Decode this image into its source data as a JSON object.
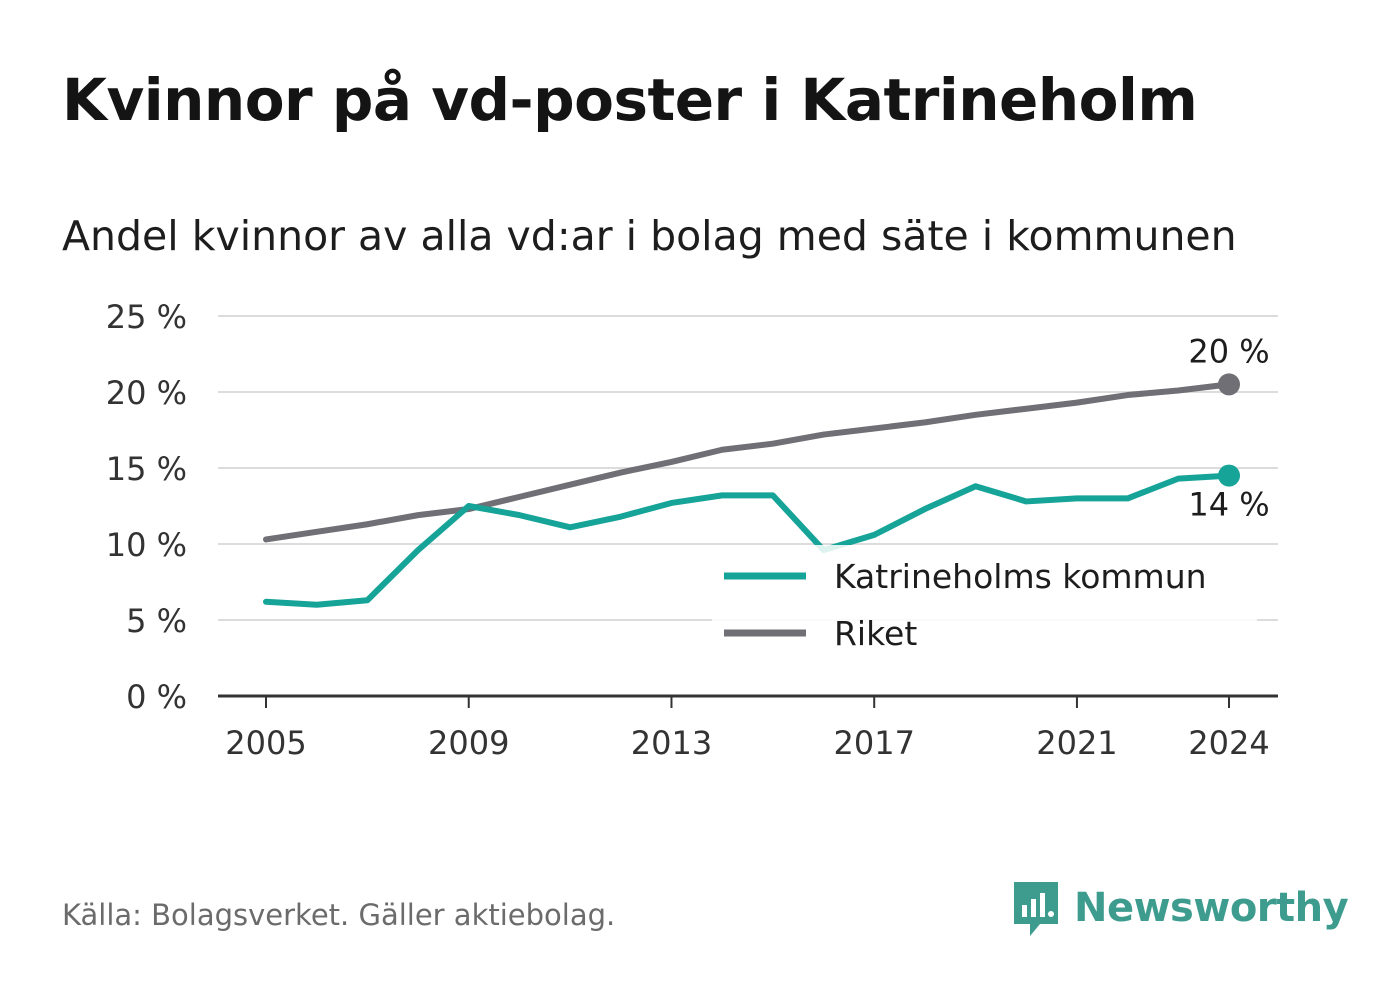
{
  "title": "Kvinnor på vd-poster i Katrineholm",
  "subtitle": "Andel kvinnor av alla vd:ar i bolag med säte i kommunen",
  "source": "Källa: Bolagsverket. Gäller aktiebolag.",
  "brand": "Newsworthy",
  "colors": {
    "kommun": "#16a398",
    "riket": "#6f6f75",
    "grid": "#dcdcdc",
    "axis": "#333333"
  },
  "chart_data": {
    "type": "line",
    "title": "Kvinnor på vd-poster i Katrineholm",
    "subtitle": "Andel kvinnor av alla vd:ar i bolag med säte i kommunen",
    "x": [
      2005,
      2006,
      2007,
      2008,
      2009,
      2010,
      2011,
      2012,
      2013,
      2014,
      2015,
      2016,
      2017,
      2018,
      2019,
      2020,
      2021,
      2022,
      2023,
      2024
    ],
    "x_ticks": [
      "2005",
      "2009",
      "2013",
      "2017",
      "2021",
      "2024"
    ],
    "y_ticks": [
      "0 %",
      "5 %",
      "10 %",
      "15 %",
      "20 %",
      "25 %"
    ],
    "ylim": [
      0,
      25
    ],
    "series": [
      {
        "name": "Katrineholms kommun",
        "color": "#16a398",
        "values": [
          6.2,
          6.0,
          6.3,
          9.6,
          12.5,
          11.9,
          11.1,
          11.8,
          12.7,
          13.2,
          13.2,
          9.6,
          10.6,
          12.3,
          13.8,
          12.8,
          13.0,
          13.0,
          14.3,
          14.5
        ],
        "end_label": "14 %"
      },
      {
        "name": "Riket",
        "color": "#6f6f75",
        "values": [
          10.3,
          10.8,
          11.3,
          11.9,
          12.3,
          13.1,
          13.9,
          14.7,
          15.4,
          16.2,
          16.6,
          17.2,
          17.6,
          18.0,
          18.5,
          18.9,
          19.3,
          19.8,
          20.1,
          20.5
        ],
        "end_label": "20 %"
      }
    ],
    "grid": true,
    "legend": "inside-right",
    "legend_entries": [
      "Katrineholms kommun",
      "Riket"
    ]
  }
}
